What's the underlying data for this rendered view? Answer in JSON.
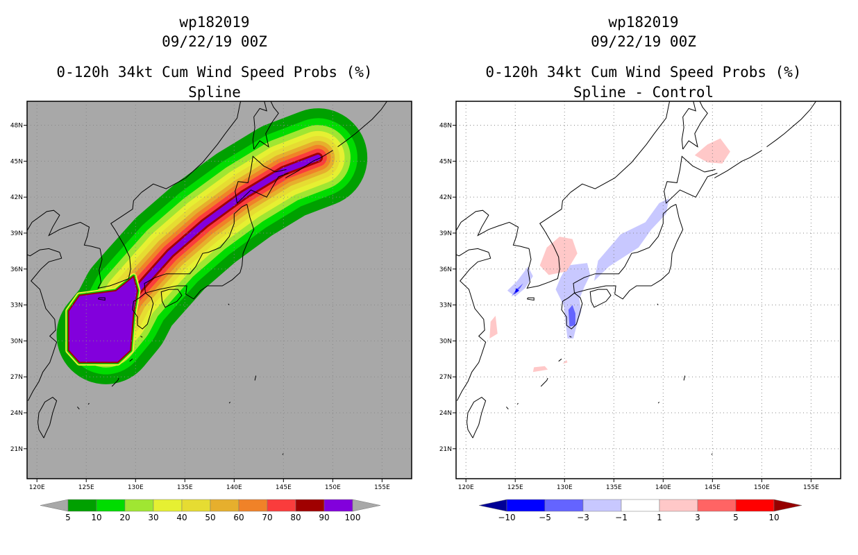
{
  "chart_data": [
    {
      "type": "heatmap",
      "id": "left",
      "title_lines": [
        "wp182019",
        "09/22/19 00Z",
        "0-120h 34kt Cum Wind Speed Probs (%)",
        "Spline"
      ],
      "xlim": [
        119,
        158
      ],
      "ylim": [
        18.5,
        50
      ],
      "x_ticks": [
        120,
        125,
        130,
        135,
        140,
        145,
        150,
        155
      ],
      "x_tick_labels": [
        "120E",
        "125E",
        "130E",
        "135E",
        "140E",
        "145E",
        "150E",
        "155E"
      ],
      "y_ticks": [
        21,
        24,
        27,
        30,
        33,
        36,
        39,
        42,
        45,
        48
      ],
      "y_tick_labels": [
        "21N",
        "24N",
        "27N",
        "30N",
        "33N",
        "36N",
        "39N",
        "42N",
        "45N",
        "48N"
      ],
      "background": "#a8a8a8",
      "levels": [
        5,
        10,
        20,
        30,
        40,
        50,
        60,
        70,
        80,
        90,
        100
      ],
      "level_labels": [
        "5",
        "10",
        "20",
        "30",
        "40",
        "50",
        "60",
        "70",
        "80",
        "90",
        "100"
      ],
      "colors": [
        "#00a000",
        "#00dc00",
        "#a0e632",
        "#e6f032",
        "#e6dc32",
        "#e6af2d",
        "#f08228",
        "#fa3c3c",
        "#a00000",
        "#8200dc"
      ],
      "colorbar_ends": [
        "#a8a8a8",
        "#a8a8a8"
      ],
      "track": {
        "pts": [
          [
            127,
            30.5
          ],
          [
            128.5,
            32
          ],
          [
            129.5,
            33.6
          ],
          [
            131,
            35
          ],
          [
            133.5,
            37.3
          ],
          [
            137,
            39.8
          ],
          [
            141,
            42.2
          ],
          [
            145,
            44.2
          ],
          [
            148.5,
            45.3
          ]
        ],
        "widths": [
          5,
          4,
          3.3,
          2.7,
          2.2,
          1.7,
          1.3,
          0.9,
          0.5,
          0.3
        ]
      },
      "core_polygon": [
        [
          123.2,
          32.5
        ],
        [
          124.3,
          33.8
        ],
        [
          128,
          34.2
        ],
        [
          129.8,
          35.4
        ],
        [
          130.2,
          34.2
        ],
        [
          129.8,
          32.2
        ],
        [
          129.5,
          29.2
        ],
        [
          128.2,
          28.2
        ],
        [
          124.3,
          28.2
        ],
        [
          123.2,
          29.2
        ]
      ]
    },
    {
      "type": "heatmap",
      "id": "right",
      "title_lines": [
        "wp182019",
        "09/22/19 00Z",
        "0-120h 34kt Cum Wind Speed Probs (%)",
        "Spline - Control"
      ],
      "xlim": [
        119,
        158
      ],
      "ylim": [
        18.5,
        50
      ],
      "x_ticks": [
        120,
        125,
        130,
        135,
        140,
        145,
        150,
        155
      ],
      "x_tick_labels": [
        "120E",
        "125E",
        "130E",
        "135E",
        "140E",
        "145E",
        "150E",
        "155E"
      ],
      "y_ticks": [
        21,
        24,
        27,
        30,
        33,
        36,
        39,
        42,
        45,
        48
      ],
      "y_tick_labels": [
        "21N",
        "24N",
        "27N",
        "30N",
        "33N",
        "36N",
        "39N",
        "42N",
        "45N",
        "48N"
      ],
      "background": "#ffffff",
      "levels": [
        -10,
        -5,
        -3,
        -1,
        1,
        3,
        5,
        10
      ],
      "level_labels": [
        "−10",
        "−5",
        "−3",
        "−1",
        "1",
        "3",
        "5",
        "10"
      ],
      "colors": [
        "#0000ff",
        "#6464ff",
        "#c8c8ff",
        "#ffffff",
        "#ffc8c8",
        "#ff6464",
        "#ff0000"
      ],
      "colorbar_ends": [
        "#000096",
        "#960000"
      ],
      "blobs": [
        {
          "color": "#c8c8ff",
          "pts": [
            [
              133.4,
              36.7
            ],
            [
              135.7,
              38.9
            ],
            [
              138.2,
              39.9
            ],
            [
              139.6,
              41.5
            ],
            [
              140.6,
              41.9
            ],
            [
              140.3,
              40.6
            ],
            [
              138.8,
              39.3
            ],
            [
              137.5,
              37.8
            ],
            [
              136,
              37
            ],
            [
              134.5,
              36.2
            ],
            [
              133,
              35
            ]
          ]
        },
        {
          "color": "#c8c8ff",
          "pts": [
            [
              130.3,
              36.3
            ],
            [
              132.3,
              36.5
            ],
            [
              132.6,
              35.5
            ],
            [
              132,
              34.5
            ],
            [
              131.5,
              33.5
            ],
            [
              131.7,
              32.5
            ],
            [
              131.2,
              31.2
            ],
            [
              130.9,
              30.2
            ],
            [
              130.3,
              30.2
            ],
            [
              130.1,
              31.6
            ],
            [
              129.9,
              33
            ],
            [
              129.1,
              34.3
            ],
            [
              129.6,
              35.3
            ]
          ]
        },
        {
          "color": "#6464ff",
          "pts": [
            [
              130.5,
              31.2
            ],
            [
              131.1,
              31.3
            ],
            [
              131.1,
              32.3
            ],
            [
              130.8,
              33
            ],
            [
              130.4,
              32.6
            ]
          ]
        },
        {
          "color": "#c8c8ff",
          "pts": [
            [
              124.2,
              34.2
            ],
            [
              125.2,
              35
            ],
            [
              126.3,
              36.2
            ],
            [
              126.8,
              35.4
            ],
            [
              126,
              34.4
            ],
            [
              125,
              33.7
            ]
          ]
        },
        {
          "color": "#6464ff",
          "pts": [
            [
              124.6,
              33.7
            ],
            [
              125.5,
              34.4
            ],
            [
              125.8,
              34.8
            ],
            [
              125.1,
              34.3
            ]
          ]
        },
        {
          "color": "#0000ff",
          "pts": [
            [
              124.9,
              33.9
            ],
            [
              125.4,
              34.2
            ],
            [
              125.1,
              34.4
            ]
          ]
        },
        {
          "color": "#ffc8c8",
          "pts": [
            [
              127.5,
              36.3
            ],
            [
              128.2,
              37.8
            ],
            [
              129.5,
              38.7
            ],
            [
              130.8,
              38.5
            ],
            [
              131.3,
              37.3
            ],
            [
              130.2,
              35.8
            ],
            [
              128.4,
              35.5
            ]
          ]
        },
        {
          "color": "#ffc8c8",
          "pts": [
            [
              143.2,
              45.5
            ],
            [
              144.5,
              46.4
            ],
            [
              145.8,
              46.9
            ],
            [
              146.8,
              45.8
            ],
            [
              146,
              44.8
            ],
            [
              144.5,
              44.9
            ]
          ]
        },
        {
          "color": "#ffc8c8",
          "pts": [
            [
              122.4,
              30.2
            ],
            [
              123.2,
              30.6
            ],
            [
              123,
              32.1
            ],
            [
              122.5,
              31.6
            ]
          ]
        },
        {
          "color": "#ffc8c8",
          "pts": [
            [
              126.8,
              27.4
            ],
            [
              128.3,
              27.6
            ],
            [
              128,
              27.9
            ],
            [
              126.9,
              27.8
            ]
          ]
        },
        {
          "color": "#ffc8c8",
          "pts": [
            [
              129.8,
              28.1
            ],
            [
              130.3,
              28.2
            ],
            [
              130.2,
              28.4
            ]
          ]
        }
      ]
    }
  ]
}
